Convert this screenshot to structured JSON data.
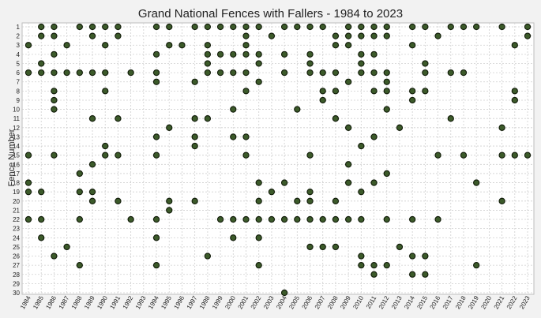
{
  "chart_data": {
    "type": "scatter",
    "title": "Grand National Fences with Fallers - 1984 to 2023",
    "xlabel": "",
    "ylabel": "Fence Number",
    "categories": [
      "1984",
      "1985",
      "1986",
      "1987",
      "1988",
      "1989",
      "1990",
      "1991",
      "1992",
      "1993",
      "1994",
      "1995",
      "1996",
      "1997",
      "1998",
      "1999",
      "2000",
      "2001",
      "2002",
      "2003",
      "2004",
      "2005",
      "2006",
      "2007",
      "2008",
      "2009",
      "2010",
      "2011",
      "2012",
      "2013",
      "2014",
      "2015",
      "2016",
      "2017",
      "2018",
      "2019",
      "2020",
      "2021",
      "2022",
      "2023"
    ],
    "y_ticks": [
      1,
      2,
      3,
      4,
      5,
      6,
      7,
      8,
      9,
      10,
      11,
      12,
      13,
      14,
      15,
      16,
      17,
      18,
      19,
      20,
      21,
      22,
      23,
      24,
      25,
      26,
      27,
      28,
      29,
      30
    ],
    "ylim": [
      1,
      30
    ],
    "y_inverted": true,
    "grid": true,
    "colors": {
      "marker": "#3c5a2a",
      "marker_edge": "#101a08",
      "background": "#f2f2f2",
      "plot_area": "#ffffff"
    },
    "series": [
      {
        "points": [
          [
            "1984",
            3
          ],
          [
            "1984",
            6
          ],
          [
            "1984",
            15
          ],
          [
            "1984",
            18
          ],
          [
            "1984",
            19
          ],
          [
            "1984",
            22
          ],
          [
            "1985",
            1
          ],
          [
            "1985",
            2
          ],
          [
            "1985",
            5
          ],
          [
            "1985",
            6
          ],
          [
            "1985",
            19
          ],
          [
            "1985",
            22
          ],
          [
            "1985",
            24
          ],
          [
            "1986",
            1
          ],
          [
            "1986",
            2
          ],
          [
            "1986",
            4
          ],
          [
            "1986",
            6
          ],
          [
            "1986",
            8
          ],
          [
            "1986",
            9
          ],
          [
            "1986",
            10
          ],
          [
            "1986",
            15
          ],
          [
            "1986",
            26
          ],
          [
            "1987",
            3
          ],
          [
            "1987",
            6
          ],
          [
            "1987",
            25
          ],
          [
            "1988",
            1
          ],
          [
            "1988",
            6
          ],
          [
            "1988",
            17
          ],
          [
            "1988",
            19
          ],
          [
            "1988",
            22
          ],
          [
            "1988",
            27
          ],
          [
            "1989",
            1
          ],
          [
            "1989",
            2
          ],
          [
            "1989",
            6
          ],
          [
            "1989",
            11
          ],
          [
            "1989",
            16
          ],
          [
            "1989",
            19
          ],
          [
            "1989",
            20
          ],
          [
            "1990",
            1
          ],
          [
            "1990",
            3
          ],
          [
            "1990",
            6
          ],
          [
            "1990",
            8
          ],
          [
            "1990",
            14
          ],
          [
            "1990",
            15
          ],
          [
            "1991",
            1
          ],
          [
            "1991",
            2
          ],
          [
            "1991",
            11
          ],
          [
            "1991",
            15
          ],
          [
            "1991",
            20
          ],
          [
            "1992",
            6
          ],
          [
            "1992",
            22
          ],
          [
            "1994",
            1
          ],
          [
            "1994",
            4
          ],
          [
            "1994",
            6
          ],
          [
            "1994",
            7
          ],
          [
            "1994",
            13
          ],
          [
            "1994",
            15
          ],
          [
            "1994",
            22
          ],
          [
            "1994",
            24
          ],
          [
            "1994",
            27
          ],
          [
            "1995",
            1
          ],
          [
            "1995",
            3
          ],
          [
            "1995",
            12
          ],
          [
            "1995",
            20
          ],
          [
            "1995",
            21
          ],
          [
            "1996",
            3
          ],
          [
            "1997",
            1
          ],
          [
            "1997",
            7
          ],
          [
            "1997",
            11
          ],
          [
            "1997",
            13
          ],
          [
            "1997",
            14
          ],
          [
            "1997",
            20
          ],
          [
            "1998",
            1
          ],
          [
            "1998",
            3
          ],
          [
            "1998",
            4
          ],
          [
            "1998",
            5
          ],
          [
            "1998",
            6
          ],
          [
            "1998",
            11
          ],
          [
            "1998",
            26
          ],
          [
            "1999",
            1
          ],
          [
            "1999",
            4
          ],
          [
            "1999",
            6
          ],
          [
            "1999",
            22
          ],
          [
            "2000",
            1
          ],
          [
            "2000",
            4
          ],
          [
            "2000",
            6
          ],
          [
            "2000",
            10
          ],
          [
            "2000",
            13
          ],
          [
            "2000",
            22
          ],
          [
            "2000",
            24
          ],
          [
            "2001",
            1
          ],
          [
            "2001",
            2
          ],
          [
            "2001",
            3
          ],
          [
            "2001",
            4
          ],
          [
            "2001",
            6
          ],
          [
            "2001",
            8
          ],
          [
            "2001",
            13
          ],
          [
            "2001",
            15
          ],
          [
            "2001",
            22
          ],
          [
            "2002",
            1
          ],
          [
            "2002",
            4
          ],
          [
            "2002",
            5
          ],
          [
            "2002",
            7
          ],
          [
            "2002",
            18
          ],
          [
            "2002",
            20
          ],
          [
            "2002",
            22
          ],
          [
            "2002",
            24
          ],
          [
            "2002",
            27
          ],
          [
            "2003",
            2
          ],
          [
            "2003",
            19
          ],
          [
            "2003",
            22
          ],
          [
            "2004",
            1
          ],
          [
            "2004",
            4
          ],
          [
            "2004",
            6
          ],
          [
            "2004",
            18
          ],
          [
            "2004",
            22
          ],
          [
            "2004",
            30
          ],
          [
            "2005",
            1
          ],
          [
            "2005",
            10
          ],
          [
            "2005",
            20
          ],
          [
            "2005",
            22
          ],
          [
            "2006",
            1
          ],
          [
            "2006",
            4
          ],
          [
            "2006",
            5
          ],
          [
            "2006",
            6
          ],
          [
            "2006",
            15
          ],
          [
            "2006",
            19
          ],
          [
            "2006",
            20
          ],
          [
            "2006",
            22
          ],
          [
            "2006",
            25
          ],
          [
            "2007",
            1
          ],
          [
            "2007",
            6
          ],
          [
            "2007",
            8
          ],
          [
            "2007",
            9
          ],
          [
            "2007",
            22
          ],
          [
            "2007",
            25
          ],
          [
            "2008",
            2
          ],
          [
            "2008",
            3
          ],
          [
            "2008",
            6
          ],
          [
            "2008",
            8
          ],
          [
            "2008",
            11
          ],
          [
            "2008",
            20
          ],
          [
            "2008",
            22
          ],
          [
            "2008",
            25
          ],
          [
            "2009",
            1
          ],
          [
            "2009",
            2
          ],
          [
            "2009",
            3
          ],
          [
            "2009",
            7
          ],
          [
            "2009",
            12
          ],
          [
            "2009",
            16
          ],
          [
            "2009",
            18
          ],
          [
            "2009",
            22
          ],
          [
            "2010",
            1
          ],
          [
            "2010",
            2
          ],
          [
            "2010",
            4
          ],
          [
            "2010",
            5
          ],
          [
            "2010",
            6
          ],
          [
            "2010",
            14
          ],
          [
            "2010",
            19
          ],
          [
            "2010",
            22
          ],
          [
            "2010",
            26
          ],
          [
            "2010",
            27
          ],
          [
            "2011",
            1
          ],
          [
            "2011",
            2
          ],
          [
            "2011",
            4
          ],
          [
            "2011",
            6
          ],
          [
            "2011",
            8
          ],
          [
            "2011",
            13
          ],
          [
            "2011",
            18
          ],
          [
            "2011",
            27
          ],
          [
            "2011",
            28
          ],
          [
            "2012",
            1
          ],
          [
            "2012",
            2
          ],
          [
            "2012",
            6
          ],
          [
            "2012",
            7
          ],
          [
            "2012",
            8
          ],
          [
            "2012",
            10
          ],
          [
            "2012",
            17
          ],
          [
            "2012",
            22
          ],
          [
            "2012",
            27
          ],
          [
            "2013",
            12
          ],
          [
            "2013",
            25
          ],
          [
            "2014",
            1
          ],
          [
            "2014",
            3
          ],
          [
            "2014",
            8
          ],
          [
            "2014",
            9
          ],
          [
            "2014",
            22
          ],
          [
            "2014",
            26
          ],
          [
            "2014",
            28
          ],
          [
            "2015",
            1
          ],
          [
            "2015",
            5
          ],
          [
            "2015",
            6
          ],
          [
            "2015",
            8
          ],
          [
            "2015",
            26
          ],
          [
            "2015",
            28
          ],
          [
            "2016",
            2
          ],
          [
            "2016",
            15
          ],
          [
            "2016",
            22
          ],
          [
            "2017",
            1
          ],
          [
            "2017",
            6
          ],
          [
            "2017",
            11
          ],
          [
            "2018",
            1
          ],
          [
            "2018",
            6
          ],
          [
            "2018",
            15
          ],
          [
            "2019",
            1
          ],
          [
            "2019",
            18
          ],
          [
            "2019",
            27
          ],
          [
            "2021",
            1
          ],
          [
            "2021",
            12
          ],
          [
            "2021",
            15
          ],
          [
            "2021",
            20
          ],
          [
            "2022",
            3
          ],
          [
            "2022",
            8
          ],
          [
            "2022",
            9
          ],
          [
            "2022",
            15
          ],
          [
            "2023",
            1
          ],
          [
            "2023",
            2
          ],
          [
            "2023",
            15
          ]
        ]
      }
    ]
  }
}
